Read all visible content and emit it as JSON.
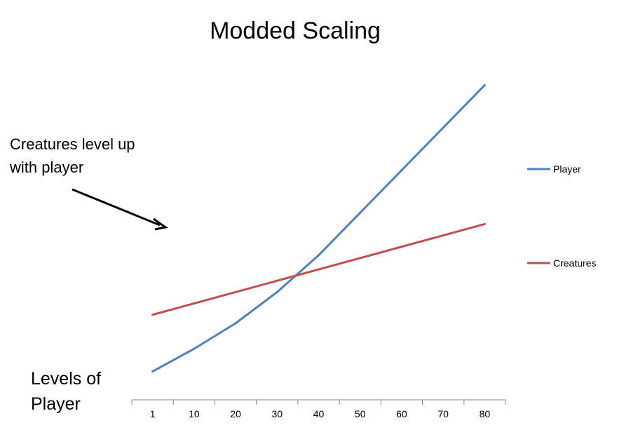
{
  "chart_data": {
    "type": "line",
    "title": "Modded Scaling",
    "xlabel": "Levels of Player",
    "ylabel": "",
    "categories": [
      "1",
      "10",
      "20",
      "30",
      "40",
      "50",
      "60",
      "70",
      "80"
    ],
    "series": [
      {
        "name": "Player",
        "color": "#4F81BD",
        "values": [
          10,
          18,
          27,
          38,
          51,
          66,
          81,
          96,
          111
        ]
      },
      {
        "name": "Creatures",
        "color": "#C0504D",
        "values": [
          30,
          34,
          38,
          42,
          46,
          50,
          54,
          58,
          62
        ]
      }
    ],
    "ylim": [
      0,
      120
    ],
    "grid": false,
    "y_axis_visible": false,
    "legend": {
      "position": "right"
    },
    "annotations": [
      {
        "text_lines": [
          "Creatures level up",
          "with player"
        ],
        "arrow": true
      }
    ]
  }
}
